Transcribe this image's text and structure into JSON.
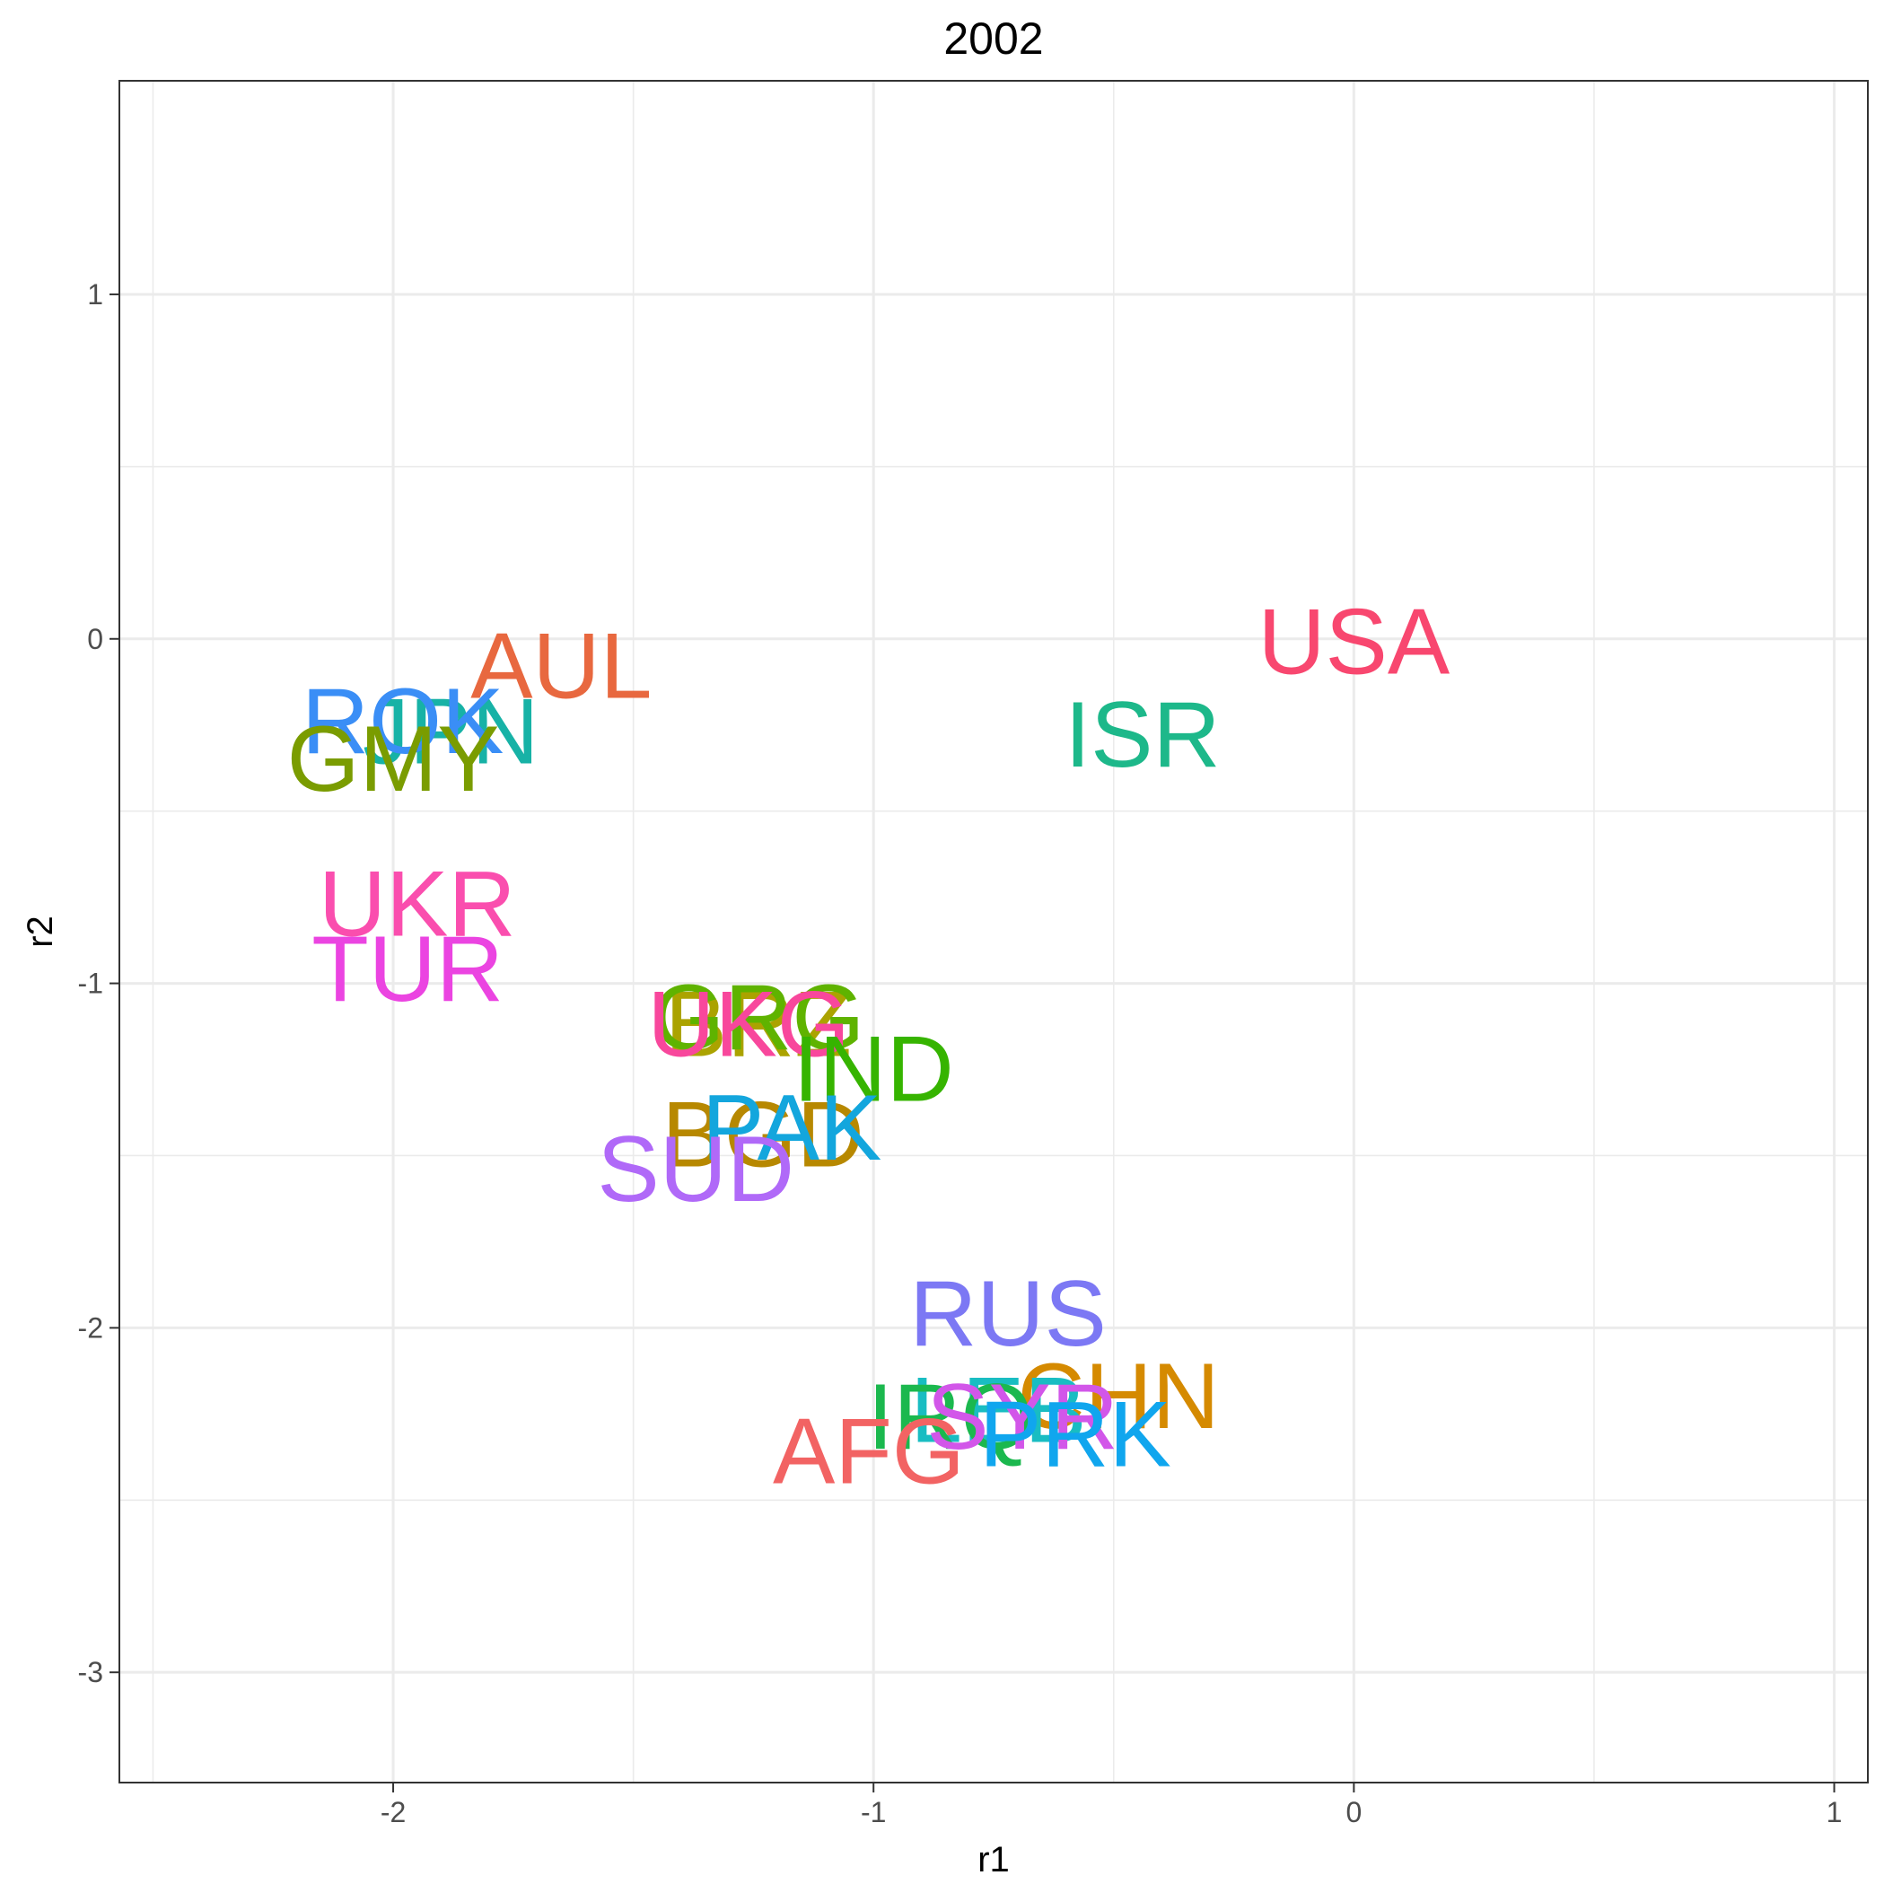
{
  "chart_data": {
    "type": "scatter",
    "title": "2002",
    "xlabel": "r1",
    "ylabel": "r2",
    "xlim": [
      -2.57,
      1.07
    ],
    "ylim": [
      -3.32,
      1.62
    ],
    "x_ticks": [
      -2,
      -1,
      0,
      1
    ],
    "x_tick_labels": [
      "-2",
      "-1",
      "0",
      "1"
    ],
    "y_ticks": [
      1,
      0,
      -1,
      -2,
      -3
    ],
    "y_tick_labels": [
      "1",
      "0",
      "-1",
      "-2",
      "-3"
    ],
    "x_minor": [
      -2.5,
      -1.5,
      -0.5,
      0.5
    ],
    "y_minor": [
      0.5,
      -0.5,
      -1.5,
      -2.5
    ],
    "grid": true,
    "legend": "none",
    "points": [
      {
        "label": "USA",
        "x": 0.0,
        "y": -0.01,
        "color": "#F8476F"
      },
      {
        "label": "ISR",
        "x": -0.44,
        "y": -0.28,
        "color": "#1DB88A"
      },
      {
        "label": "AUL",
        "x": -1.65,
        "y": -0.08,
        "color": "#E8683F"
      },
      {
        "label": "JPN",
        "x": -1.88,
        "y": -0.27,
        "color": "#17B2A6"
      },
      {
        "label": "ROK",
        "x": -1.98,
        "y": -0.24,
        "color": "#3A8EF6"
      },
      {
        "label": "GMY",
        "x": -2.0,
        "y": -0.35,
        "color": "#7A9C00"
      },
      {
        "label": "UKR",
        "x": -1.95,
        "y": -0.77,
        "color": "#FA4EAE"
      },
      {
        "label": "TUR",
        "x": -1.97,
        "y": -0.96,
        "color": "#EB44E1"
      },
      {
        "label": "BRZ",
        "x": -1.24,
        "y": -1.12,
        "color": "#ABA300"
      },
      {
        "label": "GRG",
        "x": -1.24,
        "y": -1.1,
        "color": "#5FB300"
      },
      {
        "label": "UKG",
        "x": -1.26,
        "y": -1.12,
        "color": "#F8479C"
      },
      {
        "label": "IND",
        "x": -1.0,
        "y": -1.25,
        "color": "#36B400"
      },
      {
        "label": "BGD",
        "x": -1.23,
        "y": -1.44,
        "color": "#B78800"
      },
      {
        "label": "PAK",
        "x": -1.17,
        "y": -1.42,
        "color": "#13A6DD"
      },
      {
        "label": "SUD",
        "x": -1.37,
        "y": -1.54,
        "color": "#B069F8"
      },
      {
        "label": "RUS",
        "x": -0.72,
        "y": -1.96,
        "color": "#7C78F4"
      },
      {
        "label": "CHN",
        "x": -0.49,
        "y": -2.2,
        "color": "#D58A00"
      },
      {
        "label": "LEB",
        "x": -0.74,
        "y": -2.24,
        "color": "#19BDC2"
      },
      {
        "label": "IRQ",
        "x": -0.84,
        "y": -2.26,
        "color": "#1BB84E"
      },
      {
        "label": "SYR",
        "x": -0.69,
        "y": -2.26,
        "color": "#D256E9"
      },
      {
        "label": "PRK",
        "x": -0.58,
        "y": -2.31,
        "color": "#10A6EE"
      },
      {
        "label": "AFG",
        "x": -1.01,
        "y": -2.36,
        "color": "#F26363"
      }
    ]
  }
}
